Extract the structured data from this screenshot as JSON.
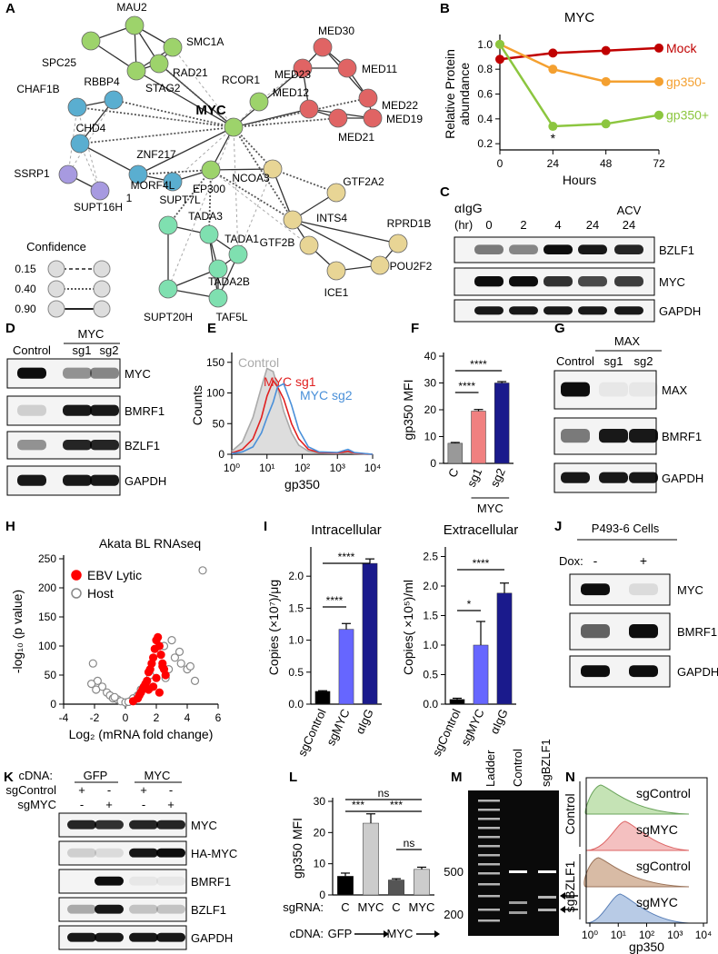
{
  "chart_data": [
    {
      "type": "line",
      "title": "MYC",
      "ylabel": [
        "Relative Protein",
        "abundance"
      ],
      "xlabel": "Hours",
      "x": [
        0,
        24,
        48,
        72
      ],
      "xlim": [
        0,
        72
      ],
      "xticks": [
        0,
        24,
        48,
        72
      ],
      "ylim": [
        0.15,
        1.05
      ],
      "yticks": [
        0.2,
        0.4,
        0.6,
        0.8,
        {
          "value": 1.0,
          "label": "1.0"
        }
      ],
      "markers": true,
      "annotation": "*",
      "series": [
        {
          "name": "Mock",
          "color": "#c00000",
          "values": [
            0.88,
            0.93,
            0.95,
            0.97
          ]
        },
        {
          "name": "gp350-",
          "color": "#f4a030",
          "values": [
            1.0,
            0.8,
            0.7,
            0.7
          ]
        },
        {
          "name": "gp350+",
          "color": "#8cc63f",
          "values": [
            1.0,
            0.34,
            0.36,
            0.43
          ]
        }
      ]
    },
    {
      "type": "line",
      "xlabel": "gp350",
      "ylabel": "Counts",
      "xlog": true,
      "x": [
        1,
        2,
        4,
        7,
        10,
        15,
        20,
        30,
        50,
        80,
        150,
        300,
        1000,
        2000,
        3000,
        10000
      ],
      "xlim": [
        1,
        10000
      ],
      "xticks": [
        {
          "value": 1,
          "label": "10⁰"
        },
        {
          "value": 10,
          "label": "10¹"
        },
        {
          "value": 100,
          "label": "10²"
        },
        {
          "value": 1000,
          "label": "10³"
        },
        {
          "value": 10000,
          "label": "10⁴"
        }
      ],
      "ylim": [
        0,
        160
      ],
      "yticks": [
        0,
        50,
        100,
        150
      ],
      "series": [
        {
          "name": "Control",
          "color": "#aaaaaa",
          "fill": true,
          "values": [
            5,
            20,
            60,
            110,
            140,
            135,
            110,
            70,
            35,
            15,
            5,
            2,
            1,
            3,
            1,
            0
          ]
        },
        {
          "name": "MYC sg1",
          "color": "#e02020",
          "values": [
            2,
            8,
            25,
            60,
            95,
            120,
            110,
            90,
            50,
            25,
            8,
            3,
            2,
            5,
            2,
            0
          ]
        },
        {
          "name": "MYC sg2",
          "color": "#4a90d9",
          "values": [
            1,
            4,
            12,
            35,
            60,
            85,
            110,
            115,
            80,
            40,
            12,
            4,
            3,
            8,
            3,
            0
          ]
        }
      ]
    },
    {
      "type": "bar",
      "ylabel": "gp350 MFI",
      "categories": [
        "C",
        "sg1",
        "sg2"
      ],
      "values": [
        7.5,
        19.5,
        30
      ],
      "errors": [
        0.3,
        0.6,
        0.5
      ],
      "colors": [
        "#999999",
        "#f08080",
        "#1a1a8c"
      ],
      "ylim": [
        0,
        40
      ],
      "yticks": [
        0,
        10,
        20,
        30,
        40
      ],
      "group_label": "MYC",
      "annotations": [
        "****",
        "****"
      ]
    },
    {
      "type": "scatter",
      "title": "Akata BL RNAseq",
      "xlabel": "Log₂ (mRNA fold change)",
      "ylabel": "-log₁₀ (p value)",
      "xlim": [
        -4,
        6
      ],
      "xticks": [
        -4,
        -2,
        0,
        2,
        4,
        6
      ],
      "ylim": [
        0,
        250
      ],
      "yticks": [
        0,
        50,
        100,
        150,
        200,
        250
      ],
      "series": [
        {
          "name": "EBV Lytic",
          "color": "#ff0000",
          "x": [
            0.5,
            0.8,
            1,
            1.2,
            1.4,
            1.5,
            1.6,
            1.7,
            1.8,
            1.9,
            2,
            2.1,
            2.2,
            2.3,
            2.4,
            2.5,
            1.3,
            1.1,
            0.9,
            2,
            2.6,
            1.8,
            2.2,
            1.5,
            2.4
          ],
          "values": [
            5,
            10,
            20,
            30,
            40,
            55,
            60,
            70,
            80,
            95,
            110,
            115,
            100,
            85,
            70,
            60,
            35,
            25,
            15,
            45,
            50,
            30,
            20,
            25,
            65
          ]
        },
        {
          "name": "Host",
          "color": "#888888",
          "hollow": true,
          "x": [
            -2.1,
            -1.8,
            -1.5,
            -1.2,
            -1,
            -0.8,
            -0.5,
            -0.3,
            0,
            0.3,
            0.5,
            0.8,
            1,
            1.2,
            -1.9,
            -0.7,
            0.2,
            2.8,
            3.2,
            3.6,
            4,
            4.2,
            2.5,
            3,
            3.5,
            4.5,
            5,
            1.6,
            2.6,
            -2.2
          ],
          "values": [
            70,
            40,
            30,
            20,
            15,
            10,
            8,
            5,
            3,
            5,
            10,
            15,
            25,
            30,
            25,
            12,
            4,
            60,
            80,
            70,
            60,
            65,
            100,
            110,
            90,
            40,
            230,
            50,
            45,
            35
          ]
        }
      ]
    },
    {
      "type": "bar",
      "title": "Intracellular",
      "ylabel": "Copies (×10⁷)/μg",
      "categories": [
        "sgControl",
        "sgMYC",
        "αIgG"
      ],
      "values": [
        0.2,
        1.17,
        2.2
      ],
      "errors": [
        0.01,
        0.09,
        0.07
      ],
      "colors": [
        "#000000",
        "#6666ff",
        "#1a1a8c"
      ],
      "ylim": [
        0,
        2.4
      ],
      "yticks": [
        {
          "value": 0,
          "label": "0.0"
        },
        0.5,
        {
          "value": 1,
          "label": "1.0"
        },
        1.5,
        {
          "value": 2,
          "label": "2.0"
        }
      ],
      "annotations": [
        "****",
        "****"
      ]
    },
    {
      "type": "bar",
      "title": "Extracellular",
      "ylabel": "Copies( ×10⁵)/ml",
      "categories": [
        "sgControl",
        "sgMYC",
        "αIgG"
      ],
      "values": [
        0.08,
        1.0,
        1.88
      ],
      "errors": [
        0.02,
        0.4,
        0.17
      ],
      "colors": [
        "#000000",
        "#6666ff",
        "#1a1a8c"
      ],
      "ylim": [
        0,
        2.6
      ],
      "yticks": [
        {
          "value": 0,
          "label": "0.0"
        },
        0.5,
        {
          "value": 1,
          "label": "1.0"
        },
        1.5,
        {
          "value": 2,
          "label": "2.0"
        },
        2.5
      ],
      "annotations": [
        "*",
        "****"
      ]
    },
    {
      "type": "bar",
      "ylabel": "gp350 MFI",
      "categories": [
        "C",
        "MYC",
        "C",
        "MYC"
      ],
      "values": [
        6,
        23,
        4.8,
        8.2
      ],
      "errors": [
        1,
        3,
        0.4,
        0.7
      ],
      "colors": [
        "#000000",
        "#cccccc",
        "#555555",
        "#cccccc"
      ],
      "ylim": [
        0,
        30
      ],
      "yticks": [
        0,
        10,
        20,
        30
      ],
      "annotations": [
        "ns",
        "***",
        "***",
        "ns"
      ]
    }
  ],
  "figure": {
    "panel_labels": [
      "A",
      "B",
      "C",
      "D",
      "E",
      "F",
      "G",
      "H",
      "I",
      "J",
      "K",
      "L",
      "M",
      "N"
    ],
    "network": {
      "legend_title": "Confidence",
      "legend": [
        "0.15",
        "0.40",
        "0.90"
      ],
      "nodes": [
        {
          "label": "MAU2",
          "color": "#9dd36b"
        },
        {
          "label": "SMC1A",
          "color": "#9dd36b"
        },
        {
          "label": "SPC25",
          "color": "#9dd36b"
        },
        {
          "label": "RAD21",
          "color": "#9dd36b"
        },
        {
          "label": "STAG2",
          "color": "#9dd36b"
        },
        {
          "label": "RCOR1",
          "color": "#9dd36b"
        },
        {
          "label": "MED23",
          "color": "#e06464"
        },
        {
          "label": "MED30",
          "color": "#e06464"
        },
        {
          "label": "MED11",
          "color": "#e06464"
        },
        {
          "label": "MED22",
          "color": "#e06464"
        },
        {
          "label": "MED12",
          "color": "#e06464"
        },
        {
          "label": "MED19",
          "color": "#e06464"
        },
        {
          "label": "MED21",
          "color": "#e06464"
        },
        {
          "label": "CHAF1B",
          "color": "#5aaed0"
        },
        {
          "label": "RBBP4",
          "color": "#5aaed0"
        },
        {
          "label": "CHD4",
          "color": "#5aaed0"
        },
        {
          "label": "MYC",
          "color": "#9dd36b"
        },
        {
          "label": "SSRP1",
          "color": "#a79ae0"
        },
        {
          "label": "ZNF217",
          "color": "#5aaed0"
        },
        {
          "label": "SUPT16H",
          "color": "#a79ae0"
        },
        {
          "label": "MORF4L",
          "label_cont": "1",
          "color": "#5aaed0"
        },
        {
          "label": "EP300",
          "color": "#9dd36b"
        },
        {
          "label": "NCOA3",
          "color": "#e8d595"
        },
        {
          "label": "GTF2A2",
          "color": "#e8d595"
        },
        {
          "label": "SUPT7L",
          "color": "#7fe0b0"
        },
        {
          "label": "TADA3",
          "color": "#7fe0b0"
        },
        {
          "label": "INTS4",
          "color": "#e8d595"
        },
        {
          "label": "RPRD1B",
          "color": "#e8d595"
        },
        {
          "label": "TADA1",
          "color": "#7fe0b0"
        },
        {
          "label": "GTF2B",
          "color": "#e8d595"
        },
        {
          "label": "POU2F2",
          "color": "#e8d595"
        },
        {
          "label": "TADA2B",
          "color": "#7fe0b0"
        },
        {
          "label": "ICE1",
          "color": "#e8d595"
        },
        {
          "label": "SUPT20H",
          "color": "#7fe0b0"
        },
        {
          "label": "TAF5L",
          "color": "#7fe0b0"
        }
      ]
    },
    "blots": {
      "C": {
        "header": [
          "αIgG",
          "(hr)"
        ],
        "lanes": [
          "0",
          "2",
          "4",
          "24",
          "24"
        ],
        "extra": "ACV",
        "rows": [
          "BZLF1",
          "MYC",
          "GAPDH"
        ]
      },
      "D": {
        "group": "MYC",
        "lanes": [
          "Control",
          "sg1",
          "sg2"
        ],
        "rows": [
          "MYC",
          "BMRF1",
          "BZLF1",
          "GAPDH"
        ]
      },
      "G": {
        "group": "MAX",
        "lanes": [
          "Control",
          "sg1",
          "sg2"
        ],
        "rows": [
          "MAX",
          "BMRF1",
          "GAPDH"
        ]
      },
      "J": {
        "title": "P493-6 Cells",
        "treatment": "Dox:",
        "lanes": [
          "-",
          "+"
        ],
        "rows": [
          "MYC",
          "BMRF1",
          "GAPDH"
        ]
      },
      "K": {
        "cdna_label": "cDNA:",
        "groups": [
          "GFP",
          "MYC"
        ],
        "conditions": [
          {
            "label": "sgControl",
            "marks": [
              "+",
              "-",
              "+",
              "-"
            ]
          },
          {
            "label": "sgMYC",
            "marks": [
              "-",
              "+",
              "-",
              "+"
            ]
          }
        ],
        "rows": [
          "MYC",
          "HA-MYC",
          "BMRF1",
          "BZLF1",
          "GAPDH"
        ]
      },
      "M": {
        "lanes": [
          "Ladder",
          "Control",
          "sgBZLF1"
        ],
        "sizes": [
          "500",
          "200"
        ]
      }
    },
    "L_labels": {
      "sgrna": "sgRNA:",
      "cdna": "cDNA:",
      "cdna_groups": [
        "GFP",
        "MYC"
      ]
    },
    "N": {
      "groups": [
        "Control",
        "sgBZLF1"
      ],
      "rows": [
        "sgControl",
        "sgMYC",
        "sgControl",
        "sgMYC"
      ],
      "xticks": [
        "10⁰",
        "10¹",
        "10²",
        "10³",
        "10⁴"
      ],
      "xlabel": "gp350"
    }
  }
}
